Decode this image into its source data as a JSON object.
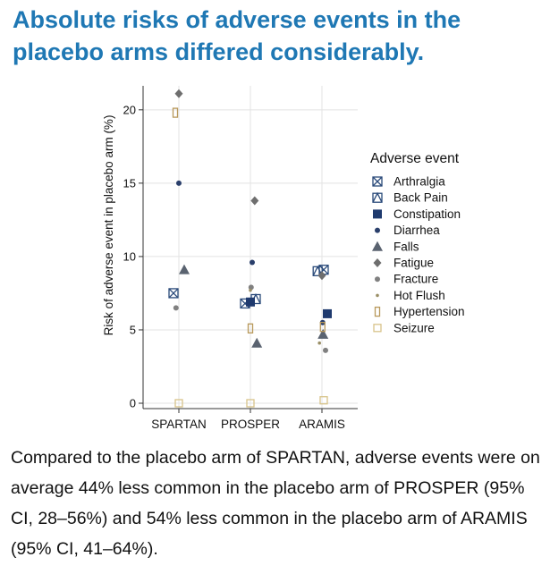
{
  "headline": "Absolute risks of adverse events in the placebo arms differed considerably.",
  "caption": "Compared to the placebo arm of SPARTAN, adverse events were on average 44% less common in the placebo arm of PROSPER (95% CI, 28–56%) and 54% less common in the placebo arm of ARAMIS (95% CI, 41–64%).",
  "chart_data": {
    "type": "scatter",
    "title": "",
    "xlabel": "",
    "ylabel": "Risk of adverse event in placebo arm (%)",
    "categories": [
      "SPARTAN",
      "PROSPER",
      "ARAMIS"
    ],
    "ylim": [
      0,
      22
    ],
    "yticks": [
      0,
      5,
      10,
      15,
      20
    ],
    "grid": true,
    "legend_title": "Adverse event",
    "legend_position": "right",
    "series": [
      {
        "name": "Arthralgia",
        "shape": "squareX",
        "color": "#2a4a7a",
        "values": [
          7.5,
          6.8,
          9.1
        ],
        "jitter": [
          -0.15,
          -0.15,
          0.05
        ]
      },
      {
        "name": "Back Pain",
        "shape": "squareTri",
        "color": "#2a4a7a",
        "values": [
          null,
          7.1,
          9.0
        ],
        "jitter": [
          0,
          0.15,
          -0.12
        ]
      },
      {
        "name": "Constipation",
        "shape": "squareFilled",
        "color": "#1f3a6e",
        "values": [
          null,
          6.9,
          6.1
        ],
        "jitter": [
          0,
          0.0,
          0.15
        ]
      },
      {
        "name": "Diarrhea",
        "shape": "dot",
        "color": "#2a3f6b",
        "values": [
          15.0,
          9.6,
          5.5
        ],
        "jitter": [
          0.0,
          0.05,
          0.02
        ]
      },
      {
        "name": "Falls",
        "shape": "triangle",
        "color": "#5a6370",
        "values": [
          9.1,
          4.1,
          4.7
        ],
        "jitter": [
          0.15,
          0.18,
          0.03
        ]
      },
      {
        "name": "Fatigue",
        "shape": "diamond",
        "color": "#6e6e6e",
        "values": [
          21.1,
          13.8,
          8.7
        ],
        "jitter": [
          0.0,
          0.12,
          0.0
        ]
      },
      {
        "name": "Fracture",
        "shape": "dot",
        "color": "#808080",
        "values": [
          6.5,
          7.9,
          3.6
        ],
        "jitter": [
          -0.08,
          0.02,
          0.1
        ]
      },
      {
        "name": "Hot Flush",
        "shape": "smalldot",
        "color": "#9a8f66",
        "values": [
          null,
          7.7,
          4.1
        ],
        "jitter": [
          0,
          0.0,
          -0.07
        ]
      },
      {
        "name": "Hypertension",
        "shape": "rectOpen",
        "color": "#b8985a",
        "values": [
          19.8,
          5.1,
          5.2
        ],
        "jitter": [
          -0.1,
          0.0,
          0.02
        ]
      },
      {
        "name": "Seizure",
        "shape": "squareOpen",
        "color": "#d8c48a",
        "values": [
          0.0,
          0.0,
          0.2
        ],
        "jitter": [
          0.0,
          0.0,
          0.05
        ]
      }
    ]
  }
}
